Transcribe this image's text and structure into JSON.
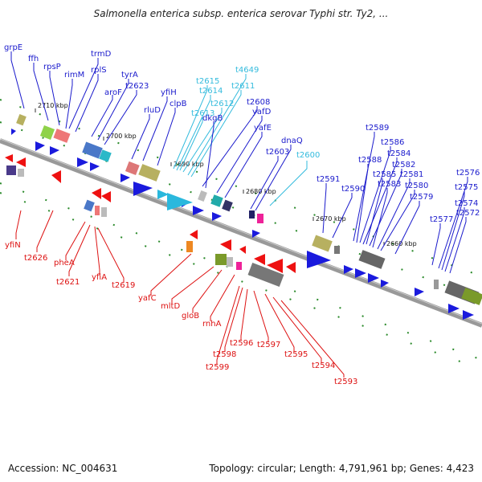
{
  "title": "Salmonella enterica subsp. enterica serovar Typhi str. Ty2, ...",
  "footer": {
    "accession": "Accession: NC_004631",
    "summary": "Topology: circular; Length: 4,791,961 bp; Genes: 4,423"
  },
  "colors": {
    "forward_label": "#1a1acc",
    "forward_highlight": "#33bbdd",
    "reverse_label": "#dd1111",
    "axis": "#888888",
    "tick_green": "#2a8a2a"
  },
  "ticks": [
    "2710 kbp",
    "2700 kbp",
    "2690 kbp",
    "2680 kbp",
    "2670 kbp",
    "2660 kbp"
  ],
  "top_labels": [
    {
      "text": "grpE",
      "color": "#1a1acc"
    },
    {
      "text": "ffh",
      "color": "#1a1acc"
    },
    {
      "text": "rpsP",
      "color": "#1a1acc"
    },
    {
      "text": "rimM",
      "color": "#1a1acc"
    },
    {
      "text": "trmD",
      "color": "#1a1acc"
    },
    {
      "text": "rplS",
      "color": "#1a1acc"
    },
    {
      "text": "tyrA",
      "color": "#1a1acc"
    },
    {
      "text": "aroF",
      "color": "#1a1acc"
    },
    {
      "text": "t2623",
      "color": "#1a1acc"
    },
    {
      "text": "yfiH",
      "color": "#1a1acc"
    },
    {
      "text": "rluD",
      "color": "#1a1acc"
    },
    {
      "text": "clpB",
      "color": "#1a1acc"
    },
    {
      "text": "t2615",
      "color": "#33bbdd"
    },
    {
      "text": "t2614",
      "color": "#33bbdd"
    },
    {
      "text": "t2612",
      "color": "#33bbdd"
    },
    {
      "text": "t2613",
      "color": "#33bbdd"
    },
    {
      "text": "t4649",
      "color": "#33bbdd"
    },
    {
      "text": "t2611",
      "color": "#33bbdd"
    },
    {
      "text": "t2608",
      "color": "#1a1acc"
    },
    {
      "text": "yafD",
      "color": "#1a1acc"
    },
    {
      "text": "dkgB",
      "color": "#1a1acc"
    },
    {
      "text": "yafE",
      "color": "#1a1acc"
    },
    {
      "text": "dnaQ",
      "color": "#1a1acc"
    },
    {
      "text": "t2603",
      "color": "#1a1acc"
    },
    {
      "text": "t2600",
      "color": "#33bbdd"
    },
    {
      "text": "t2591",
      "color": "#1a1acc"
    },
    {
      "text": "t2590",
      "color": "#1a1acc"
    },
    {
      "text": "t2589",
      "color": "#1a1acc"
    },
    {
      "text": "t2588",
      "color": "#1a1acc"
    },
    {
      "text": "t2586",
      "color": "#1a1acc"
    },
    {
      "text": "t2584",
      "color": "#1a1acc"
    },
    {
      "text": "t2585",
      "color": "#1a1acc"
    },
    {
      "text": "t2582",
      "color": "#1a1acc"
    },
    {
      "text": "t2583",
      "color": "#1a1acc"
    },
    {
      "text": "t2581",
      "color": "#1a1acc"
    },
    {
      "text": "t2580",
      "color": "#1a1acc"
    },
    {
      "text": "t2579",
      "color": "#1a1acc"
    },
    {
      "text": "t2577",
      "color": "#1a1acc"
    },
    {
      "text": "t2576",
      "color": "#1a1acc"
    },
    {
      "text": "t2575",
      "color": "#1a1acc"
    },
    {
      "text": "t2574",
      "color": "#1a1acc"
    },
    {
      "text": "t2572",
      "color": "#1a1acc"
    }
  ],
  "bottom_labels": [
    {
      "text": "yfiN",
      "color": "#dd1111"
    },
    {
      "text": "t2626",
      "color": "#dd1111"
    },
    {
      "text": "pheA",
      "color": "#dd1111"
    },
    {
      "text": "t2621",
      "color": "#dd1111"
    },
    {
      "text": "yfiA",
      "color": "#dd1111"
    },
    {
      "text": "t2619",
      "color": "#dd1111"
    },
    {
      "text": "yafC",
      "color": "#dd1111"
    },
    {
      "text": "mltD",
      "color": "#dd1111"
    },
    {
      "text": "gloB",
      "color": "#dd1111"
    },
    {
      "text": "rnhA",
      "color": "#dd1111"
    },
    {
      "text": "t2596",
      "color": "#dd1111"
    },
    {
      "text": "t2598",
      "color": "#dd1111"
    },
    {
      "text": "t2599",
      "color": "#dd1111"
    },
    {
      "text": "t2597",
      "color": "#dd1111"
    },
    {
      "text": "t2595",
      "color": "#dd1111"
    },
    {
      "text": "t2594",
      "color": "#dd1111"
    },
    {
      "text": "t2593",
      "color": "#dd1111"
    }
  ]
}
